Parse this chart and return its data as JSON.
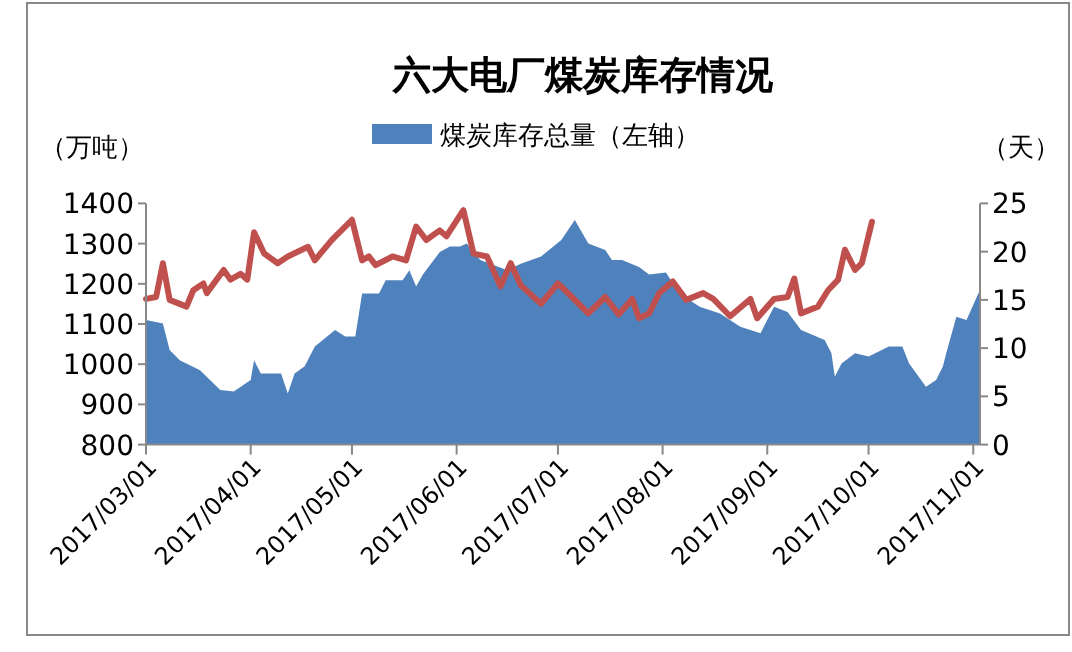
{
  "chart_data": {
    "type": "area",
    "title": "六大电厂煤炭库存情况",
    "ylabel": "（万吨）",
    "y2label": "（天）",
    "legend": "top",
    "xlim": [
      "2017-03-01",
      "2017-11-03"
    ],
    "xticks": [
      {
        "value": "2017-03-01",
        "label": "2017/03/01"
      },
      {
        "value": "2017-04-01",
        "label": "2017/04/01"
      },
      {
        "value": "2017-05-01",
        "label": "2017/05/01"
      },
      {
        "value": "2017-06-01",
        "label": "2017/06/01"
      },
      {
        "value": "2017-07-01",
        "label": "2017/07/01"
      },
      {
        "value": "2017-08-01",
        "label": "2017/08/01"
      },
      {
        "value": "2017-09-01",
        "label": "2017/09/01"
      },
      {
        "value": "2017-10-01",
        "label": "2017/10/01"
      },
      {
        "value": "2017-11-01",
        "label": "2017/11/01"
      }
    ],
    "ylim": [
      800,
      1400
    ],
    "yticks": [
      800,
      900,
      1000,
      1100,
      1200,
      1300,
      1400
    ],
    "y2lim": [
      0,
      25
    ],
    "y2ticks": [
      0,
      5,
      10,
      15,
      20,
      25
    ],
    "series": [
      {
        "name": "煤炭库存总量（左轴）",
        "color": "#4f81bd",
        "x": [
          "2017-03-01",
          "2017-03-06",
          "2017-03-08",
          "2017-03-11",
          "2017-03-17",
          "2017-03-23",
          "2017-03-27",
          "2017-04-01",
          "2017-04-02",
          "2017-04-04",
          "2017-04-10",
          "2017-04-12",
          "2017-04-14",
          "2017-04-17",
          "2017-04-20",
          "2017-04-26",
          "2017-04-29",
          "2017-05-02",
          "2017-05-04",
          "2017-05-09",
          "2017-05-11",
          "2017-05-16",
          "2017-05-18",
          "2017-05-20",
          "2017-05-22",
          "2017-05-27",
          "2017-05-30",
          "2017-06-02",
          "2017-06-04",
          "2017-06-08",
          "2017-06-16",
          "2017-06-20",
          "2017-06-26",
          "2017-07-02",
          "2017-07-06",
          "2017-07-10",
          "2017-07-15",
          "2017-07-17",
          "2017-07-20",
          "2017-07-25",
          "2017-07-28",
          "2017-08-02",
          "2017-08-06",
          "2017-08-12",
          "2017-08-18",
          "2017-08-24",
          "2017-08-30",
          "2017-09-03",
          "2017-09-07",
          "2017-09-11",
          "2017-09-18",
          "2017-09-20",
          "2017-09-21",
          "2017-09-23",
          "2017-09-27",
          "2017-10-01",
          "2017-10-07",
          "2017-10-11",
          "2017-10-13",
          "2017-10-18",
          "2017-10-21",
          "2017-10-23",
          "2017-10-24",
          "2017-10-27",
          "2017-10-30",
          "2017-11-03"
        ],
        "values": [
          1110,
          1101,
          1035,
          1010,
          985,
          936,
          932,
          961,
          1010,
          977,
          977,
          927,
          977,
          995,
          1044,
          1085,
          1069,
          1069,
          1176,
          1176,
          1209,
          1209,
          1234,
          1193,
          1223,
          1279,
          1293,
          1293,
          1300,
          1259,
          1234,
          1250,
          1268,
          1309,
          1359,
          1300,
          1284,
          1259,
          1259,
          1242,
          1223,
          1228,
          1176,
          1143,
          1126,
          1093,
          1077,
          1143,
          1130,
          1085,
          1060,
          1027,
          969,
          1002,
          1027,
          1019,
          1044,
          1044,
          1002,
          944,
          961,
          994,
          1027,
          1118,
          1110,
          1185
        ]
      },
      {
        "type": "line",
        "axis": "y2",
        "color": "#c0504d",
        "x": [
          "2017-03-01",
          "2017-03-04",
          "2017-03-06",
          "2017-03-08",
          "2017-03-13",
          "2017-03-15",
          "2017-03-18",
          "2017-03-19",
          "2017-03-24",
          "2017-03-26",
          "2017-03-29",
          "2017-03-31",
          "2017-04-02",
          "2017-04-05",
          "2017-04-09",
          "2017-04-12",
          "2017-04-18",
          "2017-04-20",
          "2017-04-25",
          "2017-05-01",
          "2017-05-04",
          "2017-05-06",
          "2017-05-08",
          "2017-05-13",
          "2017-05-17",
          "2017-05-20",
          "2017-05-23",
          "2017-05-27",
          "2017-05-29",
          "2017-06-03",
          "2017-06-06",
          "2017-06-10",
          "2017-06-14",
          "2017-06-17",
          "2017-06-20",
          "2017-06-26",
          "2017-07-01",
          "2017-07-04",
          "2017-07-10",
          "2017-07-15",
          "2017-07-19",
          "2017-07-23",
          "2017-07-25",
          "2017-07-28",
          "2017-07-31",
          "2017-08-04",
          "2017-08-08",
          "2017-08-13",
          "2017-08-16",
          "2017-08-21",
          "2017-08-27",
          "2017-08-29",
          "2017-09-03",
          "2017-09-07",
          "2017-09-09",
          "2017-09-11",
          "2017-09-16",
          "2017-09-19",
          "2017-09-22",
          "2017-09-24",
          "2017-09-27",
          "2017-09-29",
          "2017-10-02"
        ],
        "values": [
          15.1,
          15.3,
          18.8,
          15.0,
          14.3,
          16.0,
          16.7,
          15.7,
          18.1,
          17.1,
          17.7,
          17.1,
          22.0,
          19.8,
          18.8,
          19.5,
          20.5,
          19.1,
          21.2,
          23.3,
          19.1,
          19.5,
          18.6,
          19.5,
          19.1,
          22.6,
          21.2,
          22.2,
          21.6,
          24.3,
          19.8,
          19.5,
          16.4,
          18.8,
          16.5,
          14.6,
          16.7,
          15.7,
          13.6,
          15.3,
          13.5,
          15.1,
          13.1,
          13.6,
          15.7,
          16.9,
          15.0,
          15.7,
          15.1,
          13.3,
          15.1,
          13.1,
          15.1,
          15.3,
          17.2,
          13.6,
          14.3,
          16.0,
          17.1,
          20.2,
          18.1,
          18.8,
          23.1
        ]
      }
    ]
  }
}
